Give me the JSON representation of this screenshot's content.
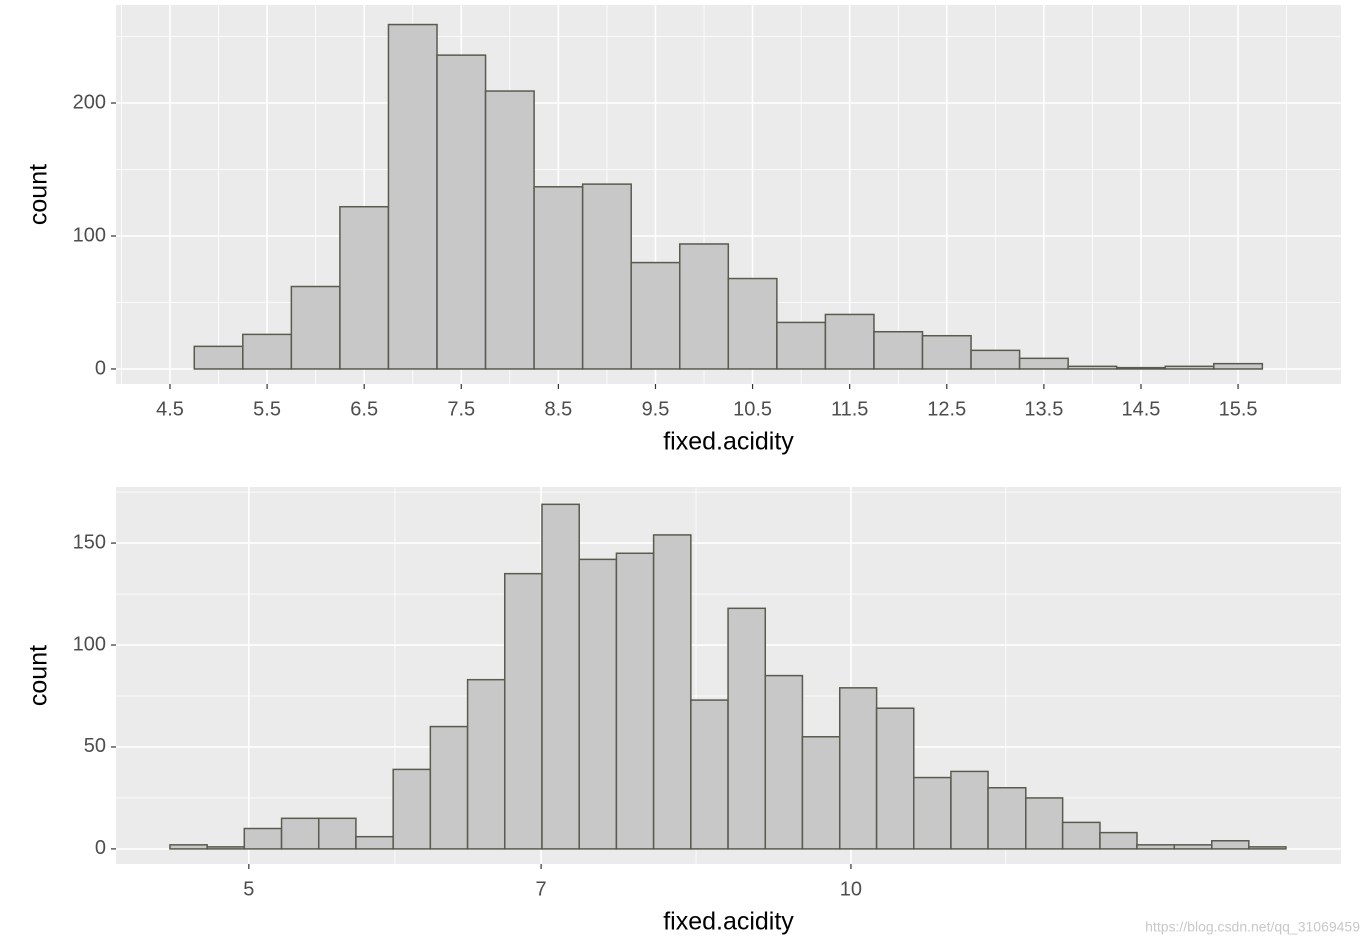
{
  "chart_data": [
    {
      "type": "histogram",
      "x_label": "fixed.acidity",
      "y_label": "count",
      "bins": [
        4.75,
        5.25,
        5.75,
        6.25,
        6.75,
        7.25,
        7.75,
        8.25,
        8.75,
        9.25,
        9.75,
        10.25,
        10.75,
        11.25,
        11.75,
        12.25,
        12.75,
        13.25,
        13.75,
        14.25,
        14.75,
        15.25,
        15.75
      ],
      "values": [
        17,
        26,
        62,
        122,
        259,
        236,
        209,
        137,
        139,
        80,
        94,
        68,
        35,
        41,
        28,
        25,
        14,
        8,
        2,
        1,
        2,
        4
      ],
      "color": "#c8c8c8",
      "edge_color": "#5a5a4e",
      "xlim": [
        3.944,
        16.56
      ],
      "ylim": [
        -11.3,
        273.7
      ],
      "xticks": [
        4.5,
        5.5,
        6.5,
        7.5,
        8.5,
        9.5,
        10.5,
        11.5,
        12.5,
        13.5,
        14.5,
        15.5
      ],
      "yticks": [
        0,
        100,
        200
      ],
      "grid": true,
      "minor_grid": true
    },
    {
      "type": "histogram",
      "x_label": "fixed.acidity",
      "y_label": "count",
      "xscale": "log",
      "bins": [
        4.566,
        4.766,
        4.974,
        5.192,
        5.419,
        5.656,
        5.904,
        6.162,
        6.432,
        6.713,
        7.007,
        7.314,
        7.634,
        7.968,
        8.317,
        8.681,
        9.061,
        9.457,
        9.872,
        10.3,
        10.75,
        11.22,
        11.71,
        12.23,
        12.76,
        13.32,
        13.9,
        14.51,
        15.15,
        15.81,
        16.5
      ],
      "values": [
        2,
        1,
        10,
        15,
        15,
        6,
        39,
        60,
        83,
        135,
        169,
        142,
        145,
        154,
        73,
        118,
        85,
        55,
        79,
        69,
        35,
        38,
        30,
        25,
        13,
        8,
        2,
        2,
        4,
        1
      ],
      "color": "#c8c8c8",
      "edge_color": "#5a5a4e",
      "xlim": [
        4.291,
        17.58
      ],
      "ylim": [
        -7.4,
        177.5
      ],
      "xticks": [
        5,
        7,
        10
      ],
      "yticks": [
        0,
        50,
        100,
        150
      ],
      "grid": true,
      "minor_grid": true
    }
  ],
  "watermark": "https://blog.csdn.net/qq_31069459"
}
